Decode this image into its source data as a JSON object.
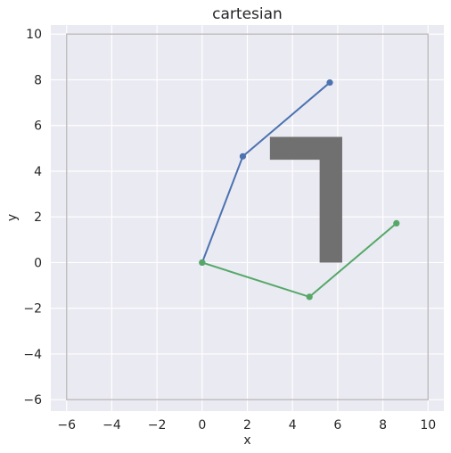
{
  "chart_data": {
    "type": "line",
    "title": "cartesian",
    "xlabel": "x",
    "ylabel": "y",
    "xlim": [
      -6.7,
      10.7
    ],
    "ylim": [
      -6.5,
      10.4
    ],
    "xticks": [
      -6,
      -4,
      -2,
      0,
      2,
      4,
      6,
      8,
      10
    ],
    "yticks": [
      -6,
      -4,
      -2,
      0,
      2,
      4,
      6,
      8,
      10
    ],
    "grid": true,
    "background": "#eaeaf2",
    "boundary": {
      "x": [
        -6,
        10
      ],
      "y": [
        -6,
        10
      ],
      "color": "#c0c0c0"
    },
    "obstacle": {
      "color": "#707070",
      "polygon": [
        [
          3.0,
          5.5
        ],
        [
          6.2,
          5.5
        ],
        [
          6.2,
          0.0
        ],
        [
          5.2,
          0.0
        ],
        [
          5.2,
          4.5
        ],
        [
          3.0,
          4.5
        ]
      ]
    },
    "series": [
      {
        "color": "#4c72b0",
        "x": [
          0.0,
          1.8,
          5.65
        ],
        "y": [
          0.0,
          4.65,
          7.88
        ]
      },
      {
        "color": "#55a868",
        "x": [
          0.0,
          4.75,
          8.6
        ],
        "y": [
          0.0,
          -1.5,
          1.72
        ]
      }
    ]
  }
}
